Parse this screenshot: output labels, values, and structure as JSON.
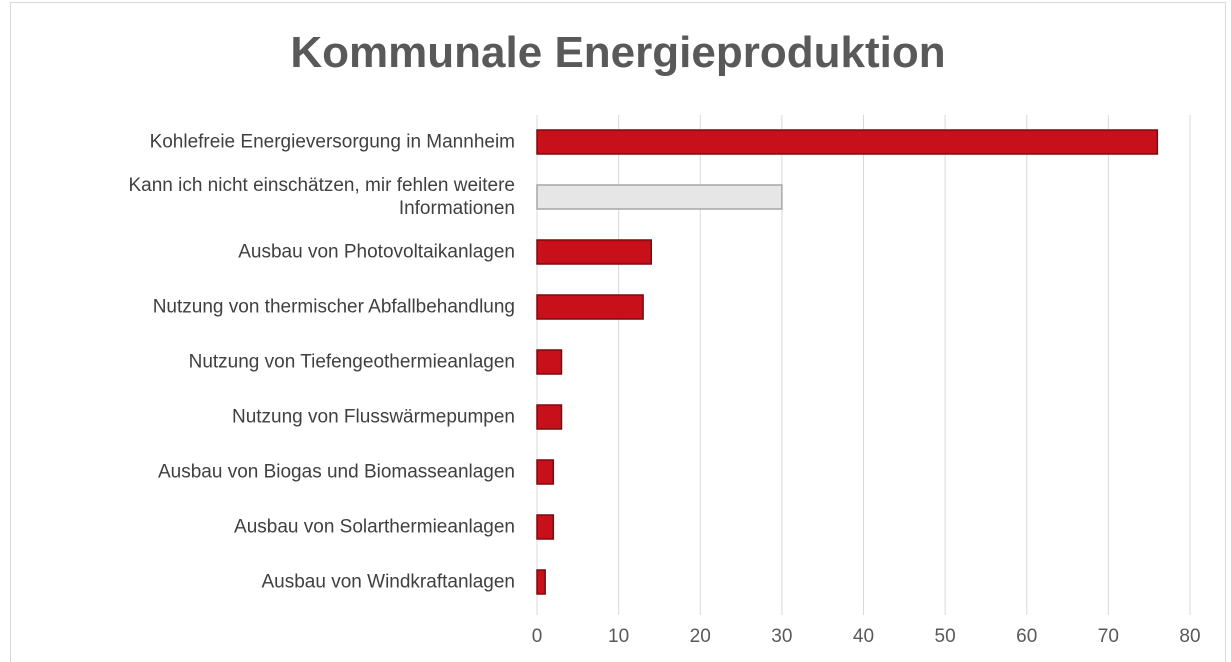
{
  "chart_data": {
    "type": "hbar",
    "title": "Kommunale Energieproduktion",
    "categories": [
      "Kohlefreie Energieversorgung in Mannheim",
      "Kann ich nicht einschätzen, mir fehlen weitere Informationen",
      "Ausbau von Photovoltaikanlagen",
      "Nutzung von thermischer Abfallbehandlung",
      "Nutzung von Tiefengeothermieanlagen",
      "Nutzung von Flusswärmepumpen",
      "Ausbau von Biogas und Biomasseanlagen",
      "Ausbau von Solarthermieanlagen",
      "Ausbau von Windkraftanlagen"
    ],
    "values": [
      76,
      30,
      14,
      13,
      3,
      3,
      2,
      2,
      1
    ],
    "colors": [
      "#c8101a",
      "#e6e6e6",
      "#c8101a",
      "#c8101a",
      "#c8101a",
      "#c8101a",
      "#c8101a",
      "#c8101a",
      "#c8101a"
    ],
    "xlim": [
      0,
      80
    ],
    "xticks": [
      0,
      10,
      20,
      30,
      40,
      50,
      60,
      70,
      80
    ],
    "grid": true
  }
}
